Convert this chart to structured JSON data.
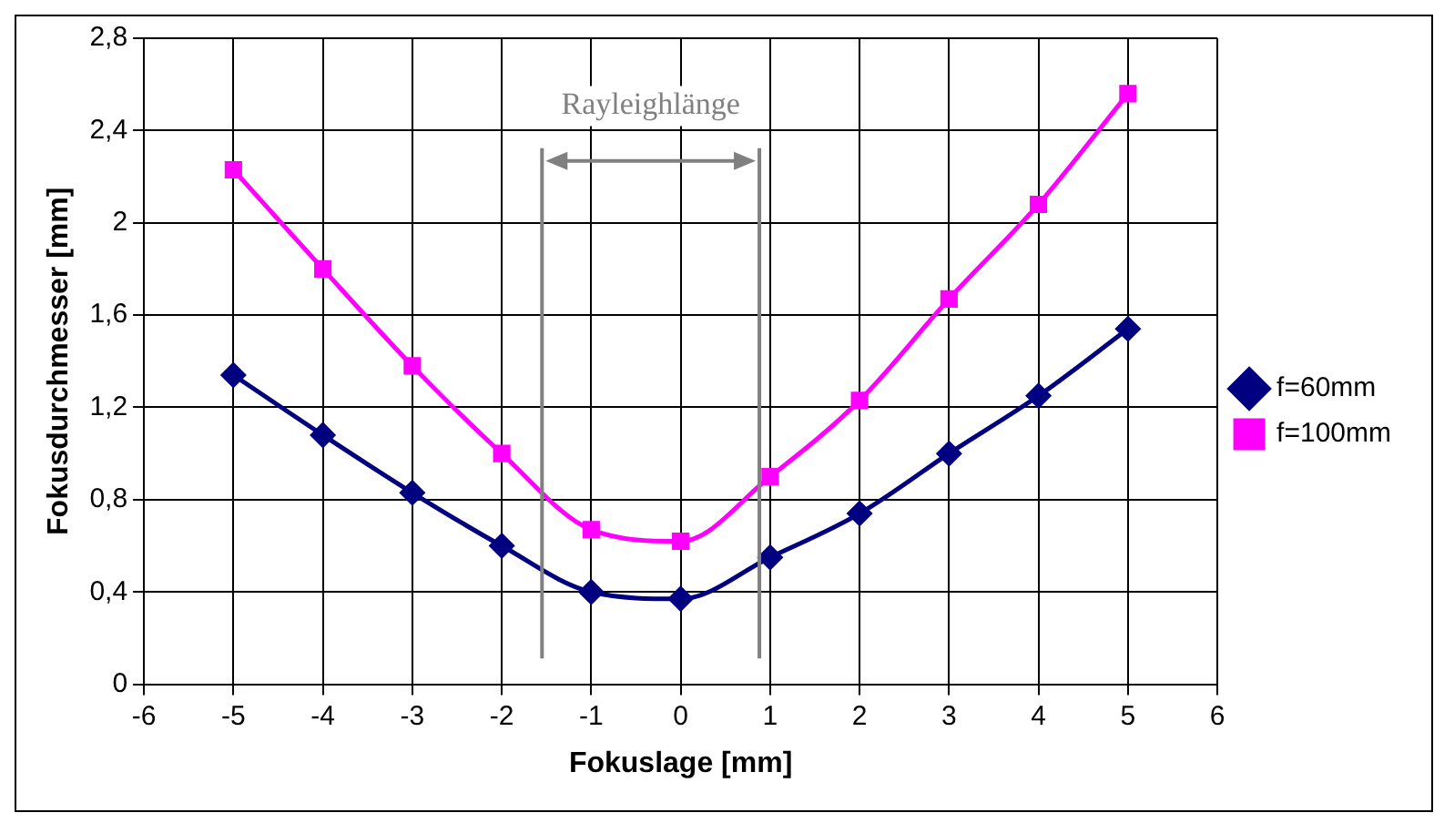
{
  "chart_data": {
    "type": "line",
    "xlabel": "Fokuslage [mm]",
    "ylabel": "Fokusdurchmesser [mm]",
    "x": [
      -5,
      -4,
      -3,
      -2,
      -1,
      0,
      1,
      2,
      3,
      4,
      5
    ],
    "series": [
      {
        "name": "f=60mm",
        "color": "#000080",
        "marker": "diamond",
        "values": [
          1.34,
          1.08,
          0.83,
          0.6,
          0.4,
          0.37,
          0.55,
          0.74,
          1.0,
          1.25,
          1.54
        ]
      },
      {
        "name": "f=100mm",
        "color": "#ff00ff",
        "marker": "square",
        "values": [
          2.23,
          1.8,
          1.38,
          1.0,
          0.67,
          0.62,
          0.9,
          1.23,
          1.67,
          2.08,
          2.56
        ]
      }
    ],
    "xlim": [
      -6,
      6
    ],
    "xticks": [
      -6,
      -5,
      -4,
      -3,
      -2,
      -1,
      0,
      1,
      2,
      3,
      4,
      5,
      6
    ],
    "ylim": [
      0,
      2.8
    ],
    "yticks": [
      0,
      {
        "value": 0.4,
        "label": "0,4"
      },
      {
        "value": 0.8,
        "label": "0,8"
      },
      {
        "value": 1.2,
        "label": "1,2"
      },
      {
        "value": 1.6,
        "label": "1,6"
      },
      2,
      {
        "value": 2.4,
        "label": "2,4"
      },
      {
        "value": 2.8,
        "label": "2,8"
      }
    ],
    "ref_lines": [
      {
        "axis": "x",
        "value": -1.55,
        "color": "#808080"
      },
      {
        "axis": "x",
        "value": 0.88,
        "color": "#808080"
      }
    ],
    "annotations": [
      "Rayleighlänge"
    ],
    "grid": true,
    "legend": "right"
  }
}
